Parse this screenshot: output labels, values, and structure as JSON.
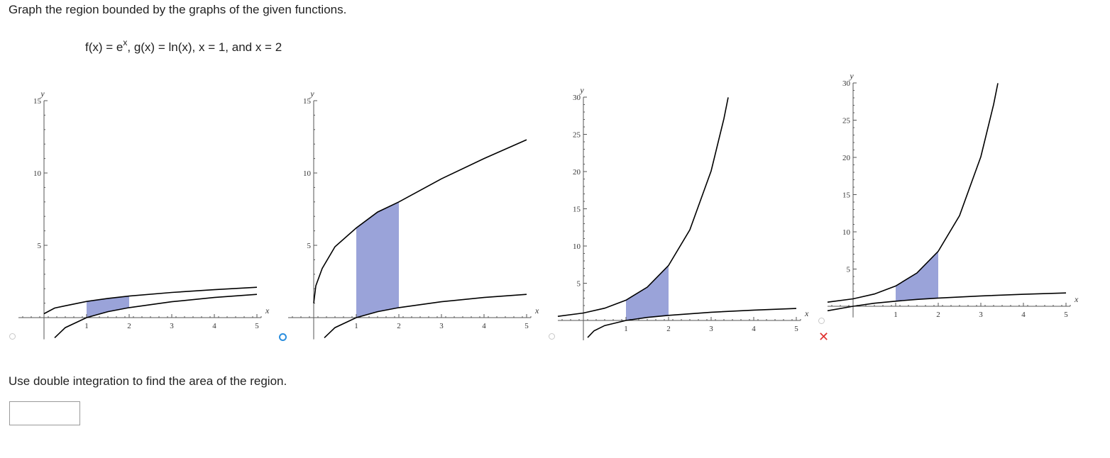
{
  "question": {
    "prompt": "Graph the region bounded by the graphs of the given functions.",
    "formula": {
      "f_lhs": "f(x) = e",
      "f_exp": "x",
      "g_part": ", g(x) = ln(x), x = 1, and x = 2"
    }
  },
  "choices": [
    {
      "selected": false,
      "marked_wrong": false
    },
    {
      "selected": true,
      "marked_wrong": false
    },
    {
      "selected": false,
      "marked_wrong": false
    },
    {
      "selected": false,
      "marked_wrong": true
    }
  ],
  "wrong_symbol": "✕",
  "colors": {
    "shade": "#9aa3d9",
    "curve": "#000000",
    "axis": "#555555",
    "selected": "#2b8ede",
    "wrong": "#e0312f"
  },
  "chart_data": [
    {
      "type": "area",
      "x_axis_label": "x",
      "y_axis_label": "y",
      "xlim": [
        -0.6,
        5.1
      ],
      "ylim": [
        -1.5,
        15
      ],
      "x_ticks": [
        1,
        2,
        3,
        4,
        5
      ],
      "y_ticks": [
        5,
        10,
        15
      ],
      "curves": [
        {
          "name": "upper",
          "x": [
            0,
            0.25,
            0.5,
            1,
            1.5,
            2,
            3,
            4,
            5
          ],
          "y": [
            0.27,
            0.66,
            0.82,
            1.12,
            1.33,
            1.49,
            1.74,
            1.93,
            2.1
          ]
        },
        {
          "name": "lower",
          "x": [
            0.25,
            0.5,
            1,
            1.5,
            2,
            3,
            4,
            5
          ],
          "y": [
            -1.39,
            -0.69,
            0,
            0.41,
            0.69,
            1.1,
            1.39,
            1.61
          ]
        }
      ],
      "shaded_between_x": [
        1,
        2
      ]
    },
    {
      "type": "area",
      "x_axis_label": "x",
      "y_axis_label": "y",
      "xlim": [
        -0.6,
        5.1
      ],
      "ylim": [
        -1.5,
        15
      ],
      "x_ticks": [
        1,
        2,
        3,
        4,
        5
      ],
      "y_ticks": [
        5,
        10,
        15
      ],
      "curves": [
        {
          "name": "upper",
          "x": [
            0,
            0.05,
            0.2,
            0.5,
            1,
            1.5,
            2,
            3,
            4,
            5
          ],
          "y": [
            1.0,
            2.2,
            3.4,
            4.9,
            6.2,
            7.3,
            8.0,
            9.6,
            11.0,
            12.3
          ]
        },
        {
          "name": "lower",
          "x": [
            0.25,
            0.5,
            1,
            1.5,
            2,
            3,
            4,
            5
          ],
          "y": [
            -1.39,
            -0.69,
            0,
            0.41,
            0.69,
            1.1,
            1.39,
            1.61
          ]
        }
      ],
      "shaded_between_x": [
        1,
        2
      ]
    },
    {
      "type": "area",
      "x_axis_label": "x",
      "y_axis_label": "y",
      "xlim": [
        -0.6,
        5.1
      ],
      "ylim": [
        -3,
        30
      ],
      "x_ticks": [
        1,
        2,
        3,
        4,
        5
      ],
      "y_ticks": [
        5,
        10,
        15,
        20,
        25,
        30
      ],
      "curves": [
        {
          "name": "upper",
          "x": [
            -0.6,
            0,
            0.5,
            1,
            1.5,
            2,
            2.5,
            3,
            3.3,
            3.4
          ],
          "y": [
            0.55,
            1.0,
            1.65,
            2.72,
            4.48,
            7.39,
            12.18,
            20.09,
            27.1,
            29.96
          ]
        },
        {
          "name": "lower",
          "x": [
            0.1,
            0.25,
            0.5,
            1,
            1.5,
            2,
            3,
            4,
            5
          ],
          "y": [
            -2.3,
            -1.39,
            -0.69,
            0,
            0.41,
            0.69,
            1.1,
            1.39,
            1.61
          ]
        }
      ],
      "shaded_between_x": [
        1,
        2
      ]
    },
    {
      "type": "area",
      "x_axis_label": "x",
      "y_axis_label": "y",
      "xlim": [
        -0.6,
        5.1
      ],
      "ylim": [
        -1.5,
        30
      ],
      "x_ticks": [
        1,
        2,
        3,
        4,
        5
      ],
      "y_ticks": [
        5,
        10,
        15,
        20,
        25,
        30
      ],
      "curves": [
        {
          "name": "upper",
          "x": [
            -0.6,
            0,
            0.5,
            1,
            1.5,
            2,
            2.5,
            3,
            3.3,
            3.4
          ],
          "y": [
            0.55,
            1.0,
            1.65,
            2.72,
            4.48,
            7.39,
            12.18,
            20.09,
            27.1,
            29.96
          ]
        },
        {
          "name": "lower",
          "x": [
            -0.6,
            0,
            0.5,
            1,
            1.5,
            2,
            3,
            4,
            5
          ],
          "y": [
            -0.6,
            0,
            0.41,
            0.69,
            0.92,
            1.1,
            1.39,
            1.61,
            1.79
          ]
        }
      ],
      "shaded_between_x": [
        1,
        2
      ]
    }
  ],
  "part2": {
    "prompt": "Use double integration to find the area of the region.",
    "answer_value": "",
    "answer_placeholder": ""
  }
}
